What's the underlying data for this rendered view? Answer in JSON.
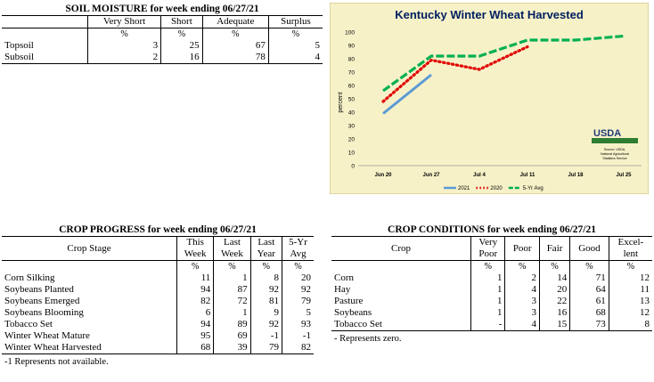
{
  "soil": {
    "title": "SOIL MOISTURE for week ending 06/27/21",
    "columns": [
      "",
      "Very Short",
      "Short",
      "Adequate",
      "Surplus"
    ],
    "pct": "%",
    "rows": [
      {
        "label": "Topsoil",
        "values": [
          "3",
          "25",
          "67",
          "5"
        ]
      },
      {
        "label": "Subsoil",
        "values": [
          "2",
          "16",
          "78",
          "4"
        ]
      }
    ]
  },
  "progress": {
    "title": "CROP PROGRESS for week ending 06/27/21",
    "col_stage": "Crop Stage",
    "col_this": [
      "This",
      "Week"
    ],
    "col_last": [
      "Last",
      "Week"
    ],
    "col_lasty": [
      "Last",
      "Year"
    ],
    "col_avg": [
      "5-Yr",
      "Avg"
    ],
    "pct": "%",
    "rows": [
      {
        "label": "Corn Silking",
        "values": [
          "11",
          "1",
          "8",
          "20"
        ]
      },
      {
        "label": "Soybeans Planted",
        "values": [
          "94",
          "87",
          "92",
          "92"
        ]
      },
      {
        "label": "Soybeans Emerged",
        "values": [
          "82",
          "72",
          "81",
          "79"
        ]
      },
      {
        "label": "Soybeans Blooming",
        "values": [
          "6",
          "1",
          "9",
          "5"
        ]
      },
      {
        "label": "Tobacco Set",
        "values": [
          "94",
          "89",
          "92",
          "93"
        ]
      },
      {
        "label": "Winter Wheat Mature",
        "values": [
          "95",
          "69",
          "-1",
          "-1"
        ]
      },
      {
        "label": "Winter Wheat Harvested",
        "values": [
          "68",
          "39",
          "79",
          "82"
        ]
      }
    ],
    "note": "-1 Represents not available."
  },
  "conditions": {
    "title": "CROP CONDITIONS for week ending 06/27/21",
    "col_crop": "Crop",
    "col_vpoor": [
      "Very",
      "Poor"
    ],
    "col_poor": "Poor",
    "col_fair": "Fair",
    "col_good": "Good",
    "col_exc": [
      "Excel-",
      "lent"
    ],
    "pct": "%",
    "rows": [
      {
        "label": "Corn",
        "values": [
          "1",
          "2",
          "14",
          "71",
          "12"
        ]
      },
      {
        "label": "Hay",
        "values": [
          "1",
          "4",
          "20",
          "64",
          "11"
        ]
      },
      {
        "label": "Pasture",
        "values": [
          "1",
          "3",
          "22",
          "61",
          "13"
        ]
      },
      {
        "label": "Soybeans",
        "values": [
          "1",
          "3",
          "16",
          "68",
          "12"
        ]
      },
      {
        "label": "Tobacco Set",
        "values": [
          "-",
          "4",
          "15",
          "73",
          "8"
        ]
      }
    ],
    "note": "- Represents zero."
  },
  "chart_data": {
    "type": "line",
    "title": "Kentucky Winter Wheat Harvested",
    "ylabel": "percent",
    "xlabel": "",
    "x": [
      "Jun 20",
      "Jun 27",
      "Jul 4",
      "Jul 11",
      "Jul 18",
      "Jul 25"
    ],
    "ylim": [
      0,
      100
    ],
    "yticks": [
      "0",
      "10",
      "20",
      "30",
      "40",
      "50",
      "60",
      "70",
      "80",
      "90",
      "100"
    ],
    "series": [
      {
        "name": "2021",
        "color": "#5b9bd5",
        "style": "solid",
        "values": [
          39,
          68,
          null,
          null,
          null,
          null
        ]
      },
      {
        "name": "2020",
        "color": "#e00000",
        "style": "dotted",
        "values": [
          48,
          79,
          72,
          89,
          null,
          null
        ]
      },
      {
        "name": "5-Yr Avg",
        "color": "#00b050",
        "style": "dashed",
        "values": [
          56,
          82,
          82,
          94,
          94,
          97
        ]
      }
    ],
    "legend": "bottom",
    "source_lines": [
      "Source: USDA,",
      "National Agricultural",
      "Statistics Service"
    ],
    "logo_text": "USDA"
  }
}
